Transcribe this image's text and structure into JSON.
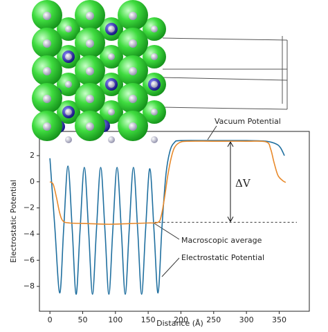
{
  "chart_data": {
    "type": "line",
    "x_label": "Distance (Å)",
    "y_label": "Electrostatic Potential",
    "xlim": [
      -16,
      396
    ],
    "ylim": [
      -9.9,
      3.85
    ],
    "xticks": [
      0,
      50,
      100,
      150,
      200,
      250,
      300,
      350
    ],
    "yticks": [
      {
        "value": -8,
        "label": "−8"
      },
      {
        "value": -6,
        "label": "−6"
      },
      {
        "value": -4,
        "label": "−4"
      },
      {
        "value": -2,
        "label": "−2"
      },
      0,
      2
    ],
    "series": [
      {
        "name": "Electrostatic Potential",
        "color": "#1f6f9f",
        "x": [
          0,
          7.5,
          15,
          21,
          27.5,
          34,
          40,
          46,
          52.5,
          59,
          65,
          71,
          77.5,
          84,
          90,
          96,
          102.5,
          109,
          115,
          121,
          127.5,
          134,
          140,
          146,
          152.5,
          159,
          165,
          171,
          177,
          183,
          190,
          200,
          250,
          300,
          330,
          345,
          352,
          358
        ],
        "values": [
          1.8,
          -3.5,
          -8.5,
          -3.6,
          1.2,
          -3.6,
          -8.6,
          -3.7,
          1.1,
          -3.7,
          -8.6,
          -3.7,
          1.1,
          -3.7,
          -8.6,
          -3.7,
          1.1,
          -3.7,
          -8.6,
          -3.7,
          1.1,
          -3.7,
          -8.6,
          -3.7,
          1.0,
          -3.8,
          -8.5,
          -3.5,
          0.5,
          2.3,
          3.0,
          3.15,
          3.15,
          3.15,
          3.1,
          2.9,
          2.6,
          2.0
        ]
      },
      {
        "name": "Macroscopic average",
        "color": "#e8892a",
        "x": [
          0,
          5,
          10,
          15,
          20,
          30,
          60,
          90,
          120,
          150,
          165,
          170,
          175,
          180,
          185,
          190,
          198,
          210,
          250,
          300,
          330,
          337,
          342,
          348,
          355,
          360
        ],
        "values": [
          0,
          -0.2,
          -1.2,
          -2.4,
          -3.0,
          -3.15,
          -3.2,
          -3.25,
          -3.2,
          -3.15,
          -3.1,
          -2.6,
          -1.2,
          0.5,
          1.8,
          2.6,
          3.0,
          3.1,
          3.1,
          3.1,
          3.05,
          2.5,
          1.5,
          0.5,
          0.1,
          -0.05
        ]
      }
    ],
    "annotations": {
      "vacuum": "Vacuum Potential",
      "delta": "ΔV",
      "macro": "Macroscopic average",
      "electro": "Electrostatic Potential"
    },
    "vacuum_level": 3.1,
    "bulk_level": -3.1
  }
}
